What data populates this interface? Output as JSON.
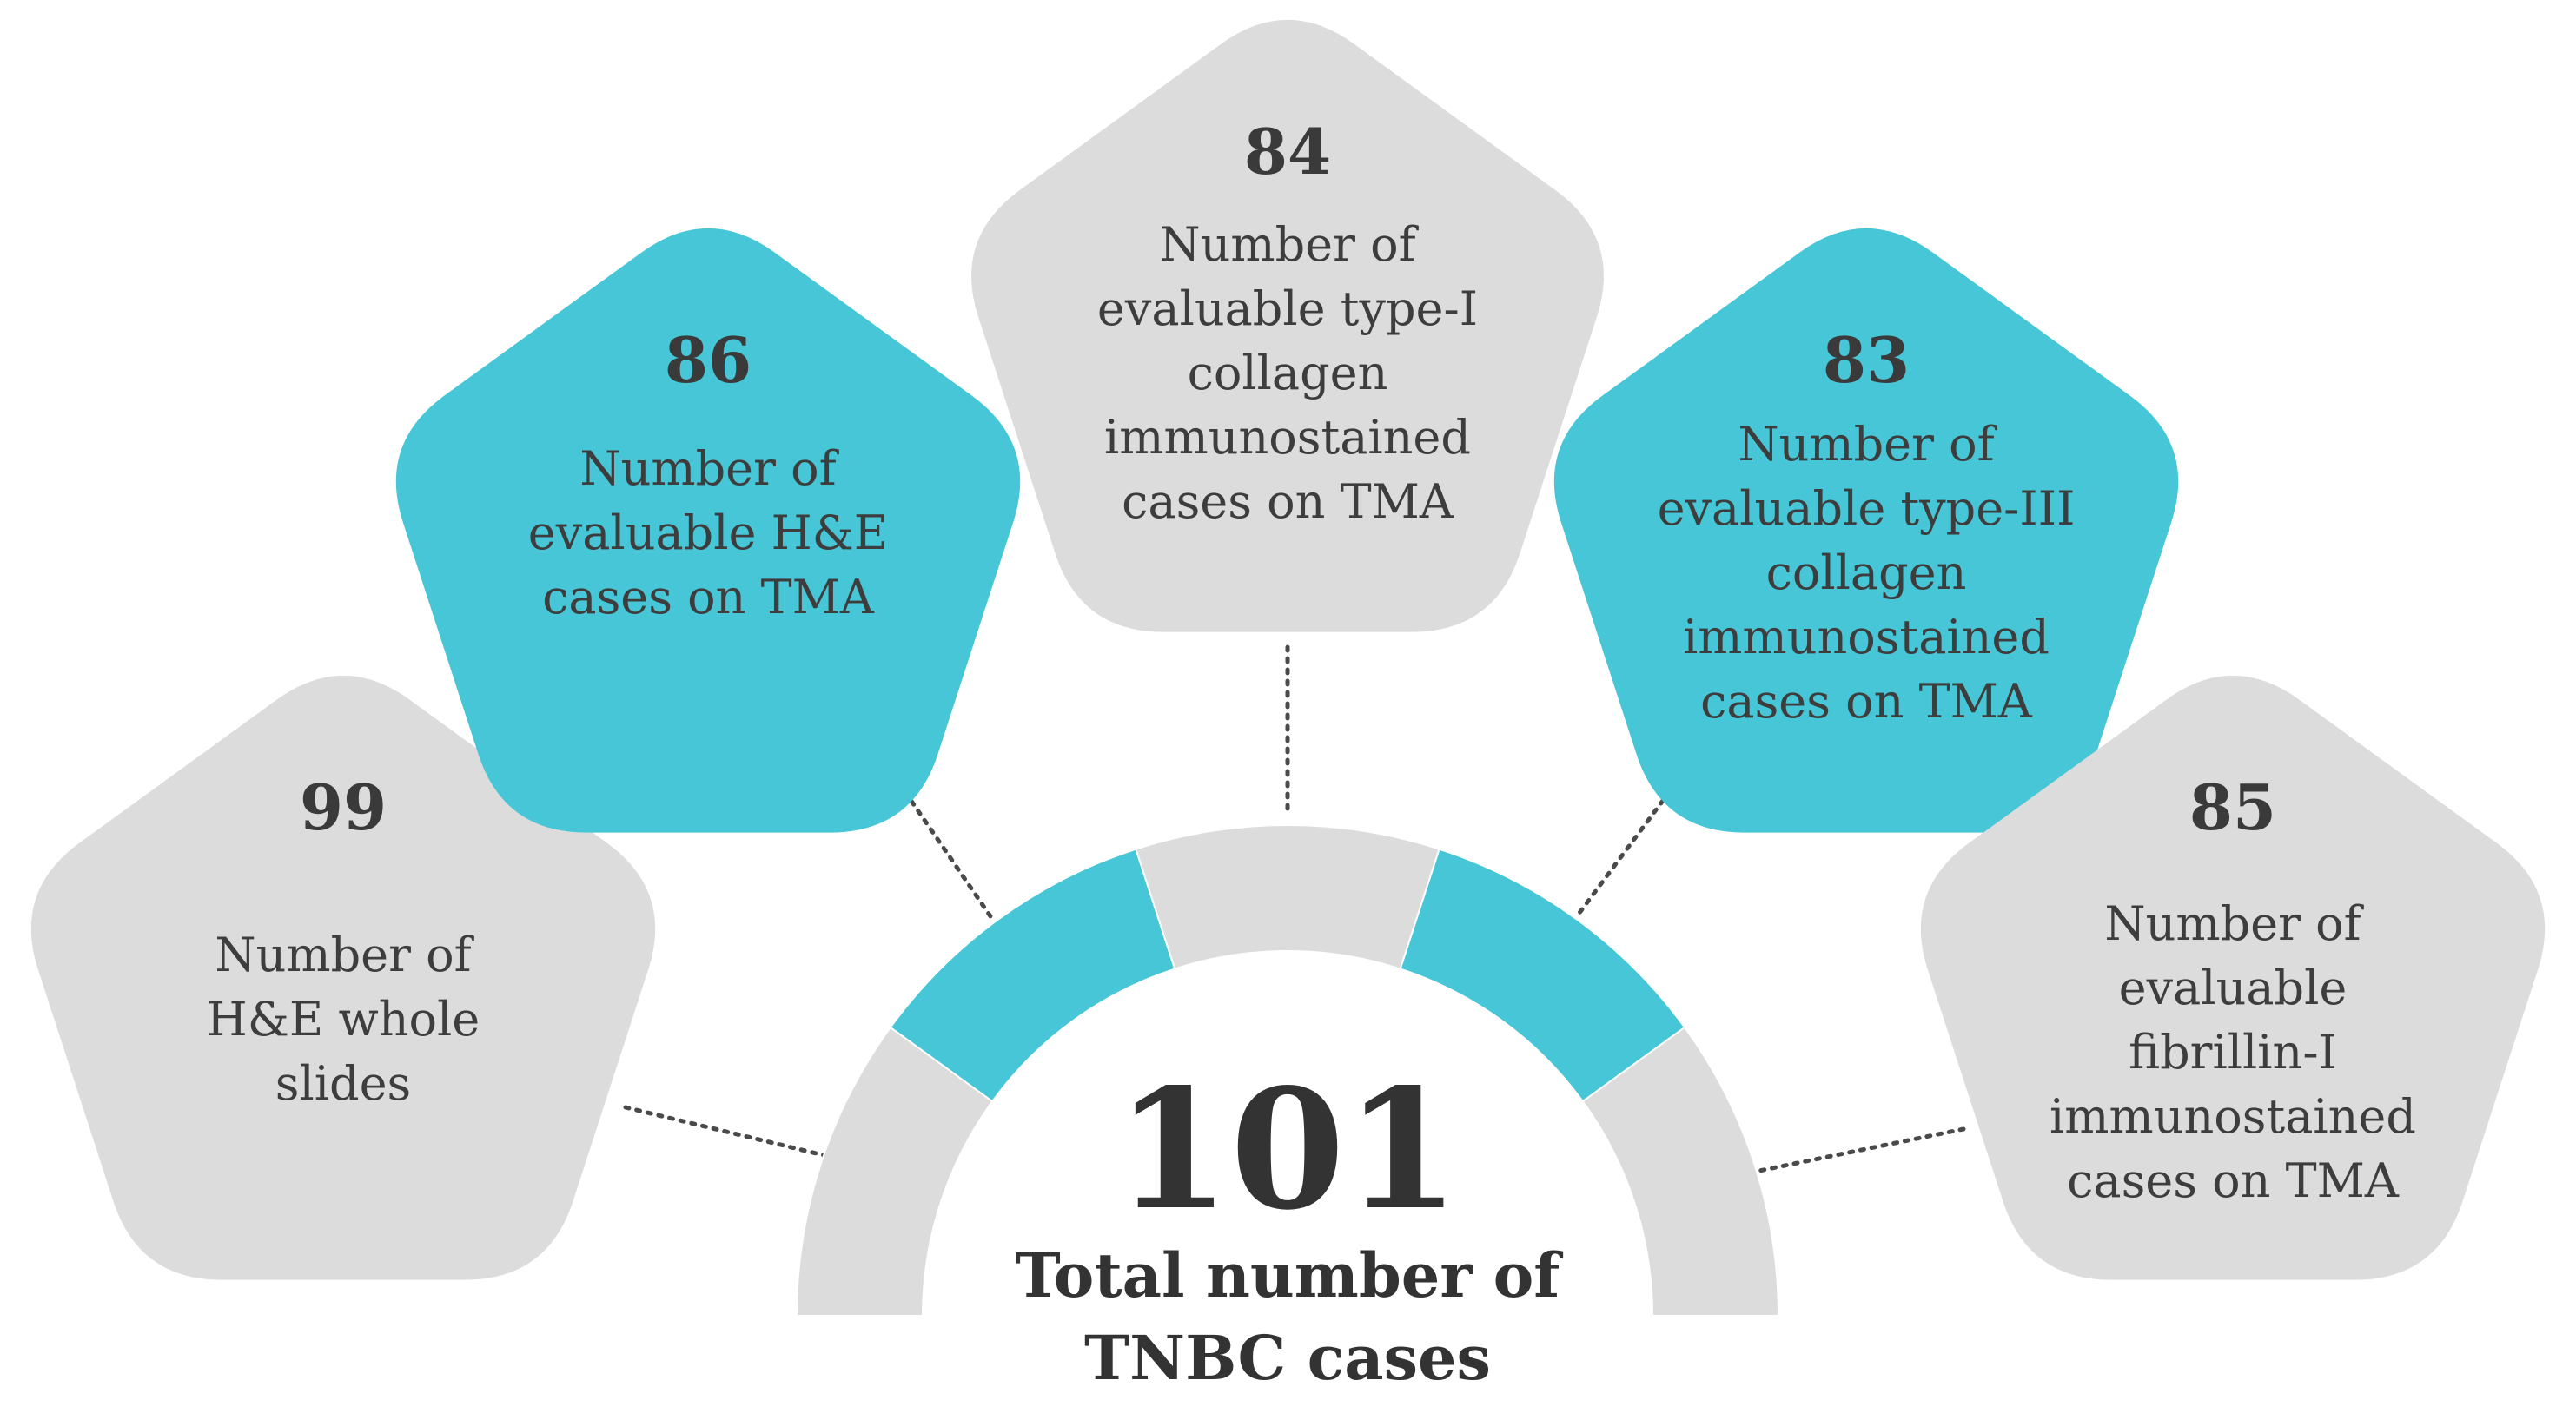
{
  "colors": {
    "teal": "#46C6D6",
    "gray": "#DCDCDC"
  },
  "total": {
    "value": "101",
    "label_lines": [
      "Total number of",
      "TNBC cases"
    ]
  },
  "nodes": [
    {
      "id": "whole-slides",
      "value": "99",
      "label_lines": [
        "Number of",
        "H&E whole",
        "slides"
      ],
      "color": "gray"
    },
    {
      "id": "he-tma",
      "value": "86",
      "label_lines": [
        "Number of",
        "evaluable H&E",
        "cases on TMA"
      ],
      "color": "teal"
    },
    {
      "id": "type1-collagen",
      "value": "84",
      "label_lines": [
        "Number of",
        "evaluable type-I",
        "collagen",
        "immunostained",
        "cases on TMA"
      ],
      "color": "gray"
    },
    {
      "id": "type3-collagen",
      "value": "83",
      "label_lines": [
        "Number of",
        "evaluable type-III",
        "collagen",
        "immunostained",
        "cases on TMA"
      ],
      "color": "teal"
    },
    {
      "id": "fibrillin",
      "value": "85",
      "label_lines": [
        "Number of",
        "evaluable",
        "fibrillin-I",
        "immunostained",
        "cases on TMA"
      ],
      "color": "gray"
    }
  ]
}
